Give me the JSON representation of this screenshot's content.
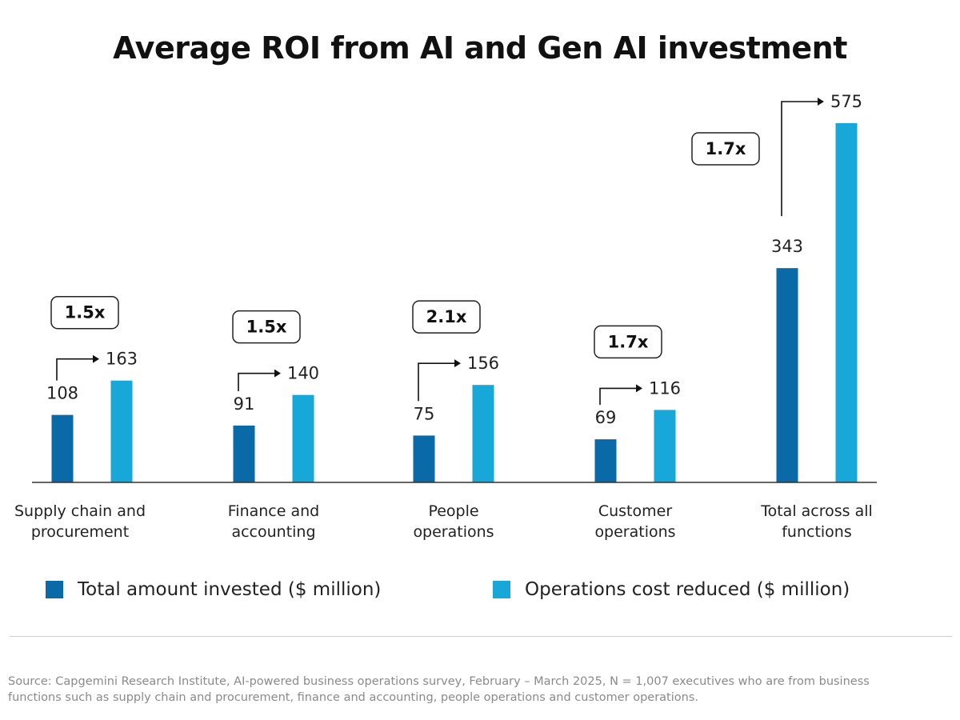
{
  "chart_data": {
    "type": "bar",
    "title": "Average ROI from AI and Gen AI investment",
    "xlabel": "",
    "ylabel": "",
    "ylim": [
      0,
      575
    ],
    "grid": false,
    "legend_position": "bottom",
    "categories": [
      "Supply chain and procurement",
      "Finance and accounting",
      "People operations",
      "Customer operations",
      "Total across all functions"
    ],
    "category_label_lines": [
      [
        "Supply chain and",
        "procurement"
      ],
      [
        "Finance and",
        "accounting"
      ],
      [
        "People",
        "operations"
      ],
      [
        "Customer",
        "operations"
      ],
      [
        "Total across all",
        "functions"
      ]
    ],
    "series": [
      {
        "name": "Total amount invested ($ million)",
        "color": "#0a6aa8",
        "values": [
          108,
          91,
          75,
          69,
          343
        ]
      },
      {
        "name": "Operations cost reduced ($ million)",
        "color": "#17a8d9",
        "values": [
          163,
          140,
          156,
          116,
          575
        ]
      }
    ],
    "annotations": [
      {
        "category": "Supply chain and procurement",
        "label": "1.5x"
      },
      {
        "category": "Finance and accounting",
        "label": "1.5x"
      },
      {
        "category": "People operations",
        "label": "2.1x"
      },
      {
        "category": "Customer operations",
        "label": "1.7x"
      },
      {
        "category": "Total across all functions",
        "label": "1.7x"
      }
    ]
  },
  "legend": {
    "invested_label": "Total amount invested ($ million)",
    "reduced_label": "Operations cost reduced ($ million)",
    "invested_color": "#0a6aa8",
    "reduced_color": "#17a8d9"
  },
  "footer": {
    "source_line1": "Source: Capgemini Research Institute, AI-powered business operations survey, February – March 2025, N = 1,007 executives who are from business",
    "source_line2": "functions such as supply chain and procurement, finance and accounting, people operations and customer operations."
  }
}
